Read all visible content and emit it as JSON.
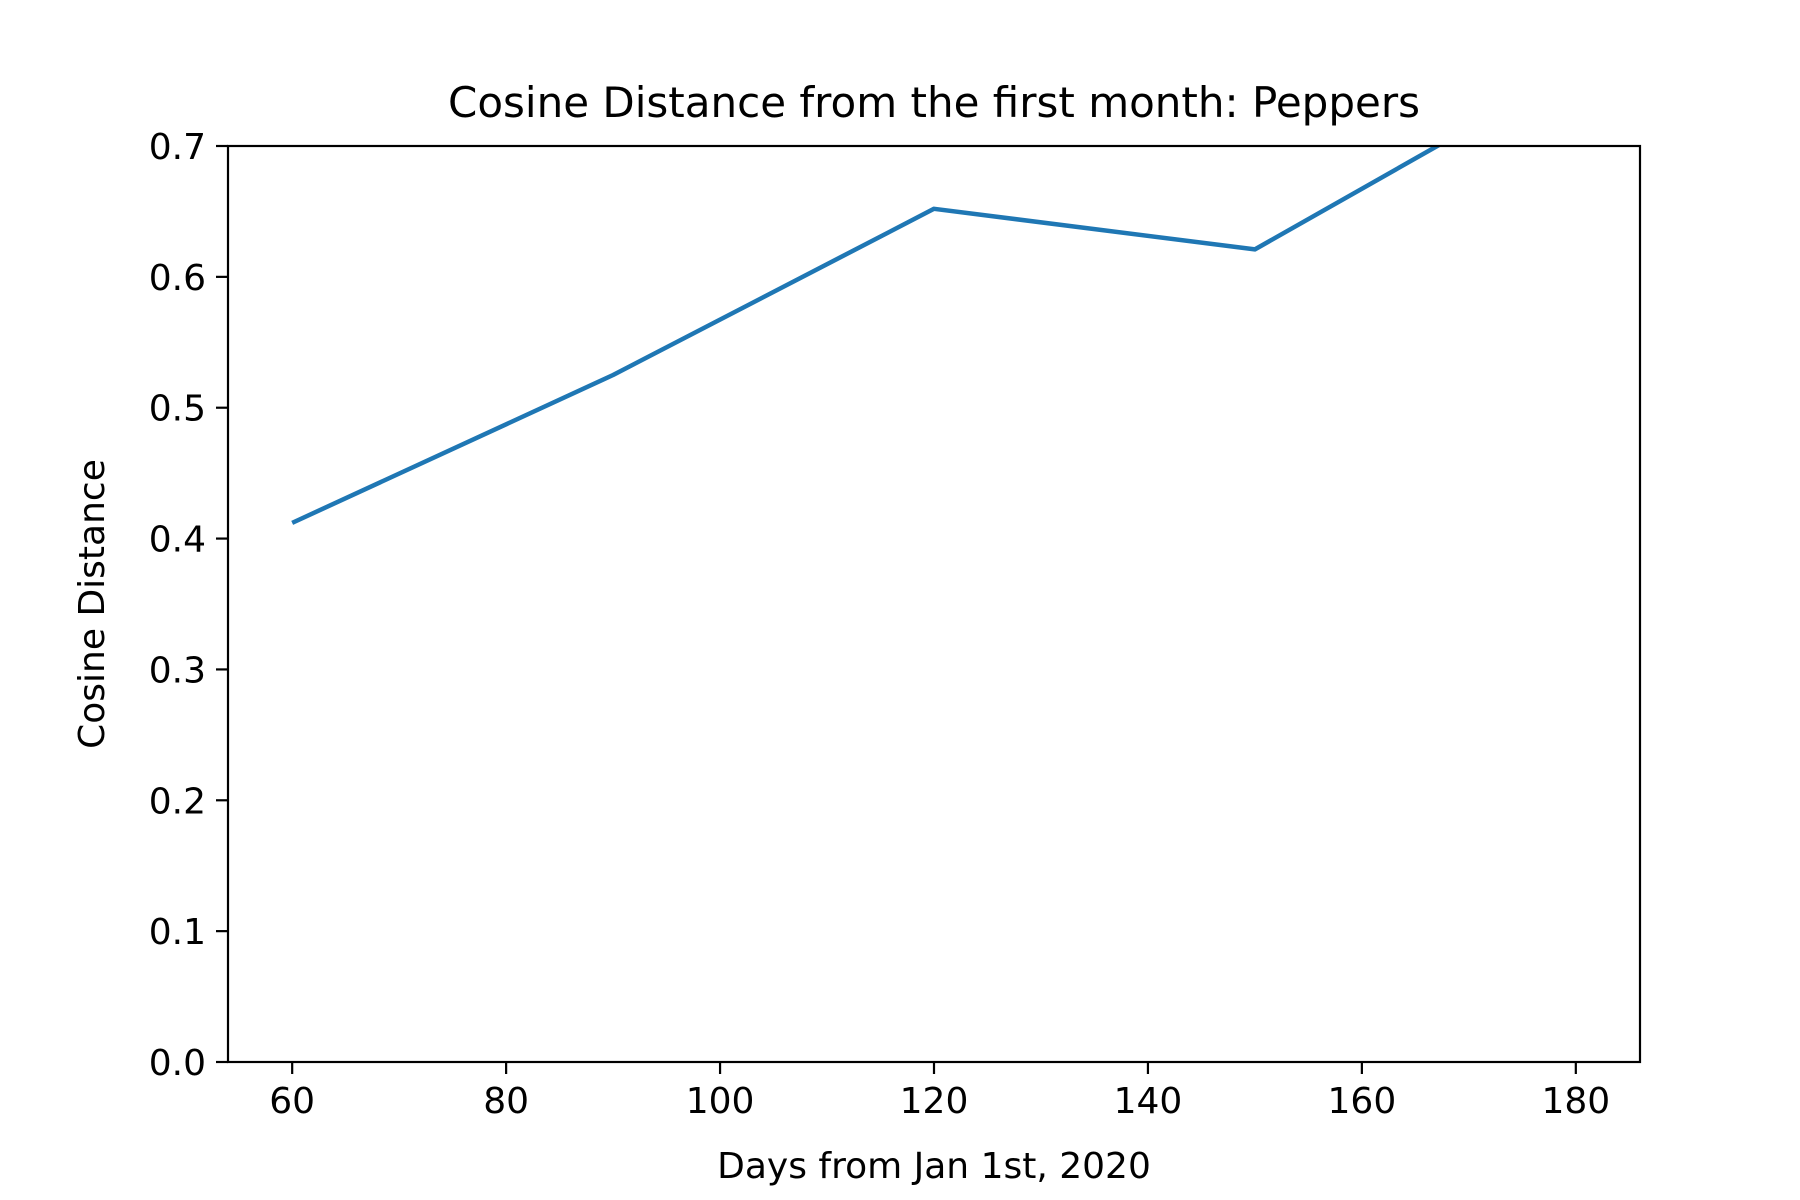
{
  "chart_data": {
    "type": "line",
    "title": "Cosine Distance from the first month: Peppers",
    "xlabel": "Days from Jan 1st, 2020",
    "ylabel": "Cosine Distance",
    "xlim": [
      54,
      186
    ],
    "ylim": [
      0.0,
      0.7
    ],
    "xticks": [
      60,
      80,
      100,
      120,
      140,
      160,
      180
    ],
    "xtick_labels": [
      "60",
      "80",
      "100",
      "120",
      "140",
      "160",
      "180"
    ],
    "yticks": [
      0.0,
      0.1,
      0.2,
      0.3,
      0.4,
      0.5,
      0.6,
      0.7
    ],
    "ytick_labels": [
      "0.0",
      "0.1",
      "0.2",
      "0.3",
      "0.4",
      "0.5",
      "0.6",
      "0.7"
    ],
    "grid": false,
    "series": [
      {
        "color": "#1f77b4",
        "x": [
          60,
          90,
          120,
          150,
          180
        ],
        "y": [
          0.412,
          0.525,
          0.652,
          0.621,
          0.76
        ]
      }
    ]
  }
}
